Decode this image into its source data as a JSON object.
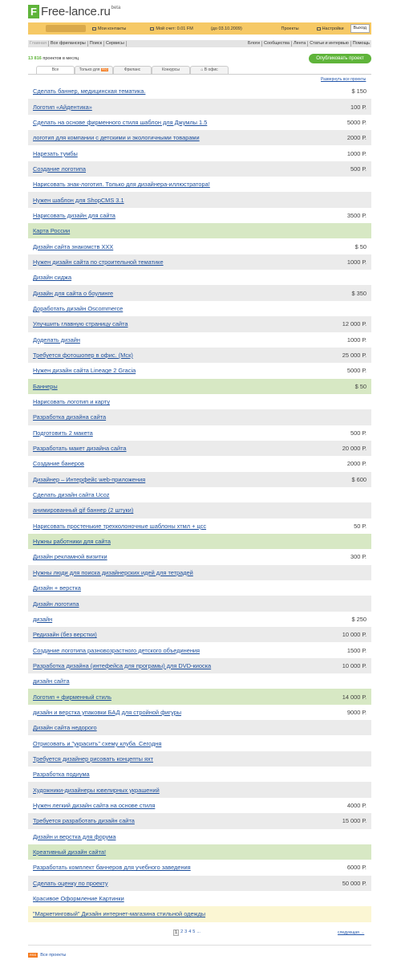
{
  "header": {
    "logo_letter": "F",
    "logo_text": "Free-lance.ru",
    "beta": "beta"
  },
  "topbar": {
    "contacts": "Мои контакты",
    "account": "Мой счет: 0.01 FM",
    "account_until": "(до 03.10.2009)",
    "projects": "Проекты",
    "settings": "Настройки",
    "logout": "Выход"
  },
  "nav": {
    "left": [
      "Главная",
      "Все фрилансеры",
      "Поиск",
      "Сервисы"
    ],
    "right": [
      "Блоги",
      "Сообщества",
      "Лента",
      "Статьи и интервью",
      "Помощь"
    ]
  },
  "count": {
    "number": "13 816",
    "label": "проектов в месяц"
  },
  "publish_label": "Опубликовать проект",
  "tabs": [
    {
      "label": "Все"
    },
    {
      "label": "Только для",
      "badge": "PRO"
    },
    {
      "label": "Фриланс"
    },
    {
      "label": "Конкурсы"
    },
    {
      "label": "В офис"
    }
  ],
  "expand_label": "Развернуть все проекты",
  "projects": [
    {
      "title": "Сделать баннер, медицинская тематика.",
      "price": "$ 150",
      "style": "white"
    },
    {
      "title": "Логотип «Айдентика»",
      "price": "100 Р.",
      "style": "grey"
    },
    {
      "title": "Сделать на основе фирменного стиля шаблон для Джумлы 1.5",
      "price": "5000 Р.",
      "style": "white"
    },
    {
      "title": "логотип для компании с детскими и экологичными товарами",
      "price": "2000 Р.",
      "style": "grey"
    },
    {
      "title": "Нарезать тумбы",
      "price": "1000 Р.",
      "style": "white"
    },
    {
      "title": "Создание логотипа",
      "price": "500 Р.",
      "style": "grey"
    },
    {
      "title": "Нарисовать знак-логотип. Только для дизайнера-иллюстратора!",
      "price": "",
      "style": "white"
    },
    {
      "title": "Нужен шаблон для ShopCMS 3.1",
      "price": "",
      "style": "grey"
    },
    {
      "title": "Нарисовать дизайн для сайта",
      "price": "3500 Р.",
      "style": "white"
    },
    {
      "title": "Карта России",
      "price": "",
      "style": "green"
    },
    {
      "title": "Дизайн сайта знакомств XXX",
      "price": "$ 50",
      "style": "white"
    },
    {
      "title": "Нужен дизайн сайта по строительной тематике",
      "price": "1000 Р.",
      "style": "grey"
    },
    {
      "title": "Дизайн сиджа",
      "price": "",
      "style": "white"
    },
    {
      "title": "Дизайн для сайта о боулинге",
      "price": "$ 350",
      "style": "grey"
    },
    {
      "title": "Доработать дизайн Oscommerce",
      "price": "",
      "style": "white"
    },
    {
      "title": "Улучшить главную страницу сайта",
      "price": "12 000 Р.",
      "style": "grey"
    },
    {
      "title": "Доделать дизайн",
      "price": "1000 Р.",
      "style": "white"
    },
    {
      "title": "Требуется фотошопер в офис. (Мск)",
      "price": "25 000 Р.",
      "style": "grey"
    },
    {
      "title": "Нужен дизайн сайта Lineage 2 Gracia",
      "price": "5000 Р.",
      "style": "white"
    },
    {
      "title": "Баннеры",
      "price": "$ 50",
      "style": "green"
    },
    {
      "title": "Нарисовать логотип и карту",
      "price": "",
      "style": "white"
    },
    {
      "title": "Разработка дизайна сайта",
      "price": "",
      "style": "grey"
    },
    {
      "title": "Подготовить 2 макета",
      "price": "500 Р.",
      "style": "white"
    },
    {
      "title": "Разработать макет дизайна сайта",
      "price": "20 000 Р.",
      "style": "grey"
    },
    {
      "title": "Создание банеров",
      "price": "2000 Р.",
      "style": "white"
    },
    {
      "title": "Дизайнер – Интерфейс web-приложения",
      "price": "$ 600",
      "style": "grey"
    },
    {
      "title": "Сделать дизайн сайта Ucoz",
      "price": "",
      "style": "white"
    },
    {
      "title": "анимированный gif баннер (2 штуки)",
      "price": "",
      "style": "grey"
    },
    {
      "title": "Нарисовать простенькие трехколоночные шаблоны хтмл + цсс",
      "price": "50 Р.",
      "style": "white"
    },
    {
      "title": "Нужны работники для сайта",
      "price": "",
      "style": "green"
    },
    {
      "title": "Дизайн рекламной визитки",
      "price": "300 Р.",
      "style": "white"
    },
    {
      "title": "Нужны люди для поиска дизайнерских идей для тетрадей",
      "price": "",
      "style": "grey"
    },
    {
      "title": "Дизайн + верстка",
      "price": "",
      "style": "white"
    },
    {
      "title": "Дизайн логотипа",
      "price": "",
      "style": "grey"
    },
    {
      "title": "дизайн",
      "price": "$ 250",
      "style": "white"
    },
    {
      "title": "Редизайн (без верстки)",
      "price": "10 000 Р.",
      "style": "grey"
    },
    {
      "title": "Создание логотипа разновозрастного детского объединения",
      "price": "1500 Р.",
      "style": "white"
    },
    {
      "title": "Разработка дизайна (интефейса для програмы) для DVD-киоска",
      "price": "10 000 Р.",
      "style": "grey"
    },
    {
      "title": "дизайн сайта",
      "price": "",
      "style": "white"
    },
    {
      "title": "Логотип + фирменный стиль",
      "price": "14 000 Р.",
      "style": "green"
    },
    {
      "title": "дизайн и верстка упаковки БАД для стройной фигуры",
      "price": "9000 Р.",
      "style": "white"
    },
    {
      "title": "Дизайн сайта недорого",
      "price": "",
      "style": "grey"
    },
    {
      "title": "Отрисовать и \"украсить\" схему клуба_Сегодня",
      "price": "",
      "style": "white"
    },
    {
      "title": "Требуется дизайнер рисовать концепты яхт",
      "price": "",
      "style": "grey"
    },
    {
      "title": "Разработка подиума",
      "price": "",
      "style": "white"
    },
    {
      "title": "Художники-дизайнеры ювелирных украшений",
      "price": "",
      "style": "grey"
    },
    {
      "title": "Нужен легкий дизайн сайта на основе стиля",
      "price": "4000 Р.",
      "style": "white"
    },
    {
      "title": "Требуется разработать дизайн сайта",
      "price": "15 000 Р.",
      "style": "grey"
    },
    {
      "title": "Дизайн и верстка для форума",
      "price": "",
      "style": "white"
    },
    {
      "title": "Креативный дизайн сайта!",
      "price": "",
      "style": "green"
    },
    {
      "title": "Разработать комплект баннеров для учебного заведения",
      "price": "6000 Р.",
      "style": "white"
    },
    {
      "title": "Сделать оценку по проекту",
      "price": "50 000 Р.",
      "style": "grey"
    },
    {
      "title": "Красивое Оформление Картинки",
      "price": "",
      "style": "white"
    },
    {
      "title": "\"Маркетинговый\" Дизайн интернет-магазина стильной одежды",
      "price": "",
      "style": "yellow"
    }
  ],
  "pager": {
    "current": "1",
    "pages": [
      "2",
      "3",
      "4",
      "5",
      "..."
    ],
    "next_label": "следующая →"
  },
  "rss": {
    "badge": "RSS",
    "label": "Все проекты"
  }
}
